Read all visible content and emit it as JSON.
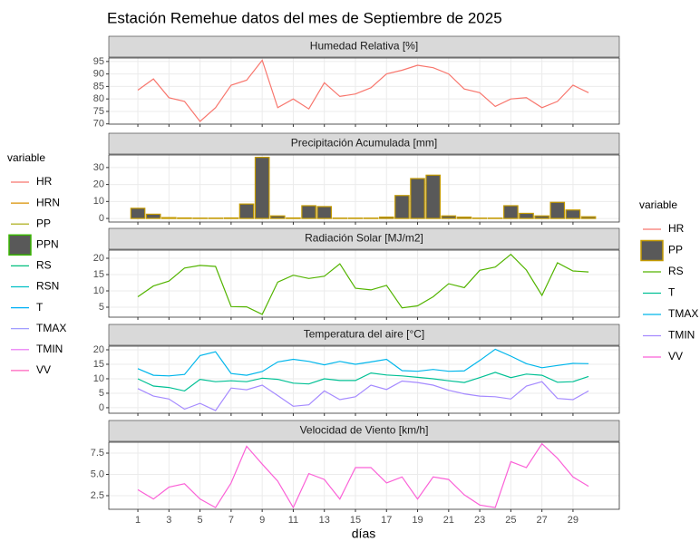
{
  "title": "Estación Remehue datos del mes de Septiembre de 2025",
  "x_label": "días",
  "x": [
    1,
    2,
    3,
    4,
    5,
    6,
    7,
    8,
    9,
    10,
    11,
    12,
    13,
    14,
    15,
    16,
    17,
    18,
    19,
    20,
    21,
    22,
    23,
    24,
    25,
    26,
    27,
    28,
    29,
    30
  ],
  "xlim": [
    -0.87,
    31.98
  ],
  "xticks": [
    1,
    3,
    5,
    7,
    9,
    11,
    13,
    15,
    17,
    19,
    21,
    23,
    25,
    27,
    29
  ],
  "legend_left": {
    "title": "variable",
    "items": [
      {
        "name": "HR",
        "color": "#F8766D"
      },
      {
        "name": "HRN",
        "color": "#D89000"
      },
      {
        "name": "PP",
        "color": "#A3A500"
      },
      {
        "name": "PPN",
        "color": "#39B600",
        "key": "box"
      },
      {
        "name": "RS",
        "color": "#00BF7D"
      },
      {
        "name": "RSN",
        "color": "#00BFC4"
      },
      {
        "name": "T",
        "color": "#00B0F6"
      },
      {
        "name": "TMAX",
        "color": "#9590FF"
      },
      {
        "name": "TMIN",
        "color": "#E76BF3"
      },
      {
        "name": "VV",
        "color": "#FF62BC"
      }
    ]
  },
  "legend_right": {
    "title": "variable",
    "items": [
      {
        "name": "HR",
        "color": "#F8766D"
      },
      {
        "name": "PP",
        "color": "#C49A00",
        "key": "box"
      },
      {
        "name": "RS",
        "color": "#53B400"
      },
      {
        "name": "T",
        "color": "#00C094"
      },
      {
        "name": "TMAX",
        "color": "#00B6EB"
      },
      {
        "name": "TMIN",
        "color": "#A58AFF"
      },
      {
        "name": "VV",
        "color": "#FB61D7"
      }
    ]
  },
  "chart_data": [
    {
      "type": "line",
      "title": "Humedad Relativa [%]",
      "ylim": [
        69.9,
        96.4
      ],
      "yticks": [
        70,
        75,
        80,
        85,
        90,
        95
      ],
      "series": [
        {
          "name": "HR",
          "color": "#F8766D",
          "values": [
            83.5,
            88,
            80.5,
            79,
            71,
            76.5,
            85.5,
            87.5,
            95.5,
            76.5,
            80,
            76,
            86.5,
            81,
            82,
            84.5,
            90,
            91.5,
            93.5,
            92.5,
            90,
            84,
            82.5,
            77,
            80,
            80.5,
            76.5,
            79,
            85.5,
            82.5
          ]
        }
      ]
    },
    {
      "type": "bar",
      "title": "Precipitación Acumulada [mm]",
      "ylim": [
        -2.1,
        37.4
      ],
      "yticks": [
        0,
        10,
        20,
        30
      ],
      "series": [
        {
          "name": "PP",
          "color": "#595959",
          "edge_color": "#C49A00",
          "values": [
            6,
            2.5,
            0.5,
            0.3,
            0.2,
            0.2,
            0.3,
            8.5,
            36,
            1.5,
            0.3,
            7.5,
            7,
            0.2,
            0.2,
            0.2,
            0.8,
            13.5,
            23.5,
            25.5,
            1.5,
            0.8,
            0.2,
            0.2,
            7.5,
            3,
            1.5,
            9.5,
            5,
            1
          ]
        }
      ]
    },
    {
      "type": "line",
      "title": "Radiación Solar [MJ/m2]",
      "ylim": [
        1.94,
        22.5
      ],
      "yticks": [
        5,
        10,
        15,
        20
      ],
      "series": [
        {
          "name": "RS",
          "color": "#53B400",
          "values": [
            8.2,
            11.5,
            13,
            17,
            17.8,
            17.5,
            5.2,
            5.1,
            2.8,
            12.7,
            14.8,
            13.8,
            14.5,
            18.3,
            10.8,
            10.3,
            11.7,
            4.8,
            5.4,
            8.2,
            12.2,
            11,
            16.3,
            17.3,
            21.2,
            16.4,
            8.6,
            18.6,
            16.1,
            15.8
          ]
        }
      ]
    },
    {
      "type": "line",
      "title": "Temperatura del aire [°C]",
      "ylim": [
        -1.9,
        21.25
      ],
      "yticks": [
        0,
        5,
        10,
        15,
        20
      ],
      "series": [
        {
          "name": "T",
          "color": "#00C094",
          "values": [
            10,
            7.5,
            7,
            5.8,
            9.8,
            9,
            9.3,
            9,
            10.2,
            9.8,
            8.5,
            8.2,
            10,
            9.4,
            9.4,
            12,
            11.3,
            11,
            10.5,
            10,
            9.3,
            8.7,
            10.4,
            12.2,
            10.4,
            11.6,
            11.2,
            8.8,
            9,
            10.8
          ]
        },
        {
          "name": "TMAX",
          "color": "#00B6EB",
          "values": [
            13.5,
            11.2,
            11,
            11.5,
            18,
            19.3,
            11.8,
            11.2,
            12.5,
            15.8,
            16.7,
            16,
            14.8,
            16,
            15,
            15.8,
            16.7,
            12.8,
            12.6,
            13.2,
            12.6,
            12.7,
            16.3,
            20.2,
            17.8,
            15.2,
            13.8,
            14.6,
            15.3,
            15.2
          ]
        },
        {
          "name": "TMIN",
          "color": "#A58AFF",
          "values": [
            6.6,
            4,
            3,
            -0.5,
            1.5,
            -1,
            6.8,
            6.2,
            7.8,
            4.2,
            0.5,
            1,
            5.8,
            2.8,
            3.8,
            7.8,
            6.3,
            9.2,
            8.7,
            7.8,
            6,
            4.8,
            4,
            3.8,
            3,
            7.5,
            9,
            3.2,
            2.8,
            5.8
          ]
        }
      ]
    },
    {
      "type": "line",
      "title": "Velocidad de Viento [km/h]",
      "ylim": [
        0.9,
        8.78
      ],
      "yticks": [
        {
          "value": 2.5,
          "label": "2.5"
        },
        {
          "value": 5,
          "label": "5.0"
        },
        {
          "value": 7.5,
          "label": "7.5"
        }
      ],
      "series": [
        {
          "name": "VV",
          "color": "#FB61D7",
          "values": [
            3.2,
            2.1,
            3.5,
            3.9,
            2.1,
            1.1,
            4,
            8.3,
            6.2,
            4.2,
            1.1,
            5.1,
            4.4,
            2.1,
            5.8,
            5.8,
            4,
            4.7,
            2.1,
            4.7,
            4.4,
            2.6,
            1.4,
            1.1,
            6.5,
            5.8,
            8.6,
            6.9,
            4.7,
            3.6
          ]
        }
      ]
    }
  ]
}
